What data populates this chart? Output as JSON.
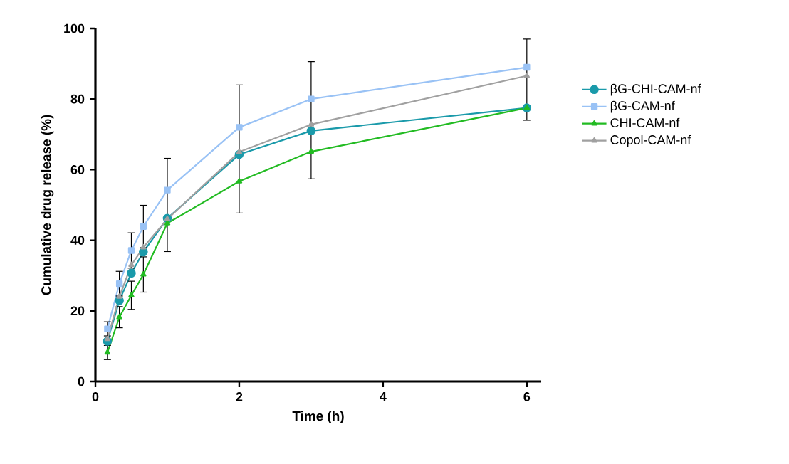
{
  "chart_data": {
    "type": "line",
    "xlabel": "Time (h)",
    "ylabel": "Cumulative drug release (%)",
    "x": [
      0.167,
      0.333,
      0.5,
      0.667,
      1,
      2,
      3,
      6
    ],
    "series": [
      {
        "name": "βG-CHI-CAM-nf",
        "color": "#1a9aaa",
        "marker": "circle",
        "values": [
          11.4,
          22.9,
          30.7,
          36.7,
          46.2,
          64.3,
          71,
          77.5
        ]
      },
      {
        "name": "βG-CAM-nf",
        "color": "#99c2f5",
        "marker": "square",
        "values": [
          14.9,
          27.7,
          37.1,
          43.9,
          54.2,
          72,
          80,
          89
        ],
        "errors": [
          2,
          3.5,
          5,
          6,
          [
            36.8,
            63.2
          ],
          [
            47.7,
            84
          ],
          [
            57.4,
            90.6
          ],
          [
            74,
            97
          ]
        ]
      },
      {
        "name": "CHI-CAM-nf",
        "color": "#22bb22",
        "marker": "triangle",
        "values": [
          8.2,
          18.2,
          24.4,
          30.3,
          44.8,
          56.7,
          65.1,
          77.5
        ],
        "errors": [
          2,
          3,
          4,
          5,
          null,
          null,
          null,
          null
        ]
      },
      {
        "name": "Copol-CAM-nf",
        "color": "#a0a0a0",
        "marker": "triangle",
        "values": [
          12,
          24,
          33,
          38,
          46,
          65,
          72.8,
          86.6
        ]
      }
    ],
    "xlim": [
      0,
      6.2
    ],
    "xticks": [
      0,
      2,
      4,
      6
    ],
    "ylim": [
      0,
      100
    ],
    "yticks": [
      0,
      20,
      40,
      60,
      80,
      100
    ],
    "grid": false,
    "legend": "right",
    "line_style": "solid"
  }
}
